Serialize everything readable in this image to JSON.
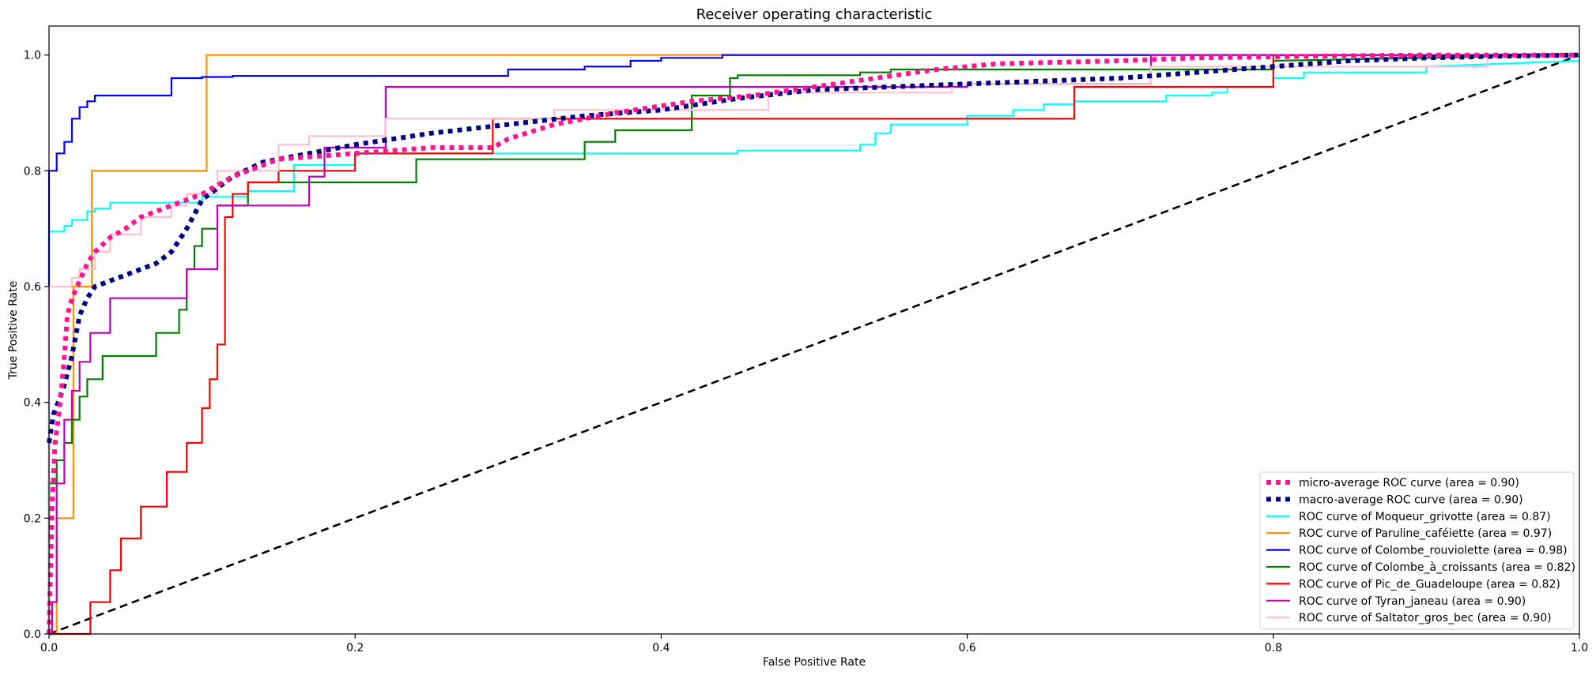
{
  "chart_data": {
    "type": "line",
    "title": "Receiver operating characteristic",
    "xlabel": "False Positive Rate",
    "ylabel": "True Positive Rate",
    "xlim": [
      0.0,
      1.0
    ],
    "ylim": [
      0.0,
      1.05
    ],
    "xticks": [
      "0.0",
      "0.2",
      "0.4",
      "0.6",
      "0.8",
      "1.0"
    ],
    "yticks": [
      "0.0",
      "0.2",
      "0.4",
      "0.6",
      "0.8",
      "1.0"
    ],
    "grid": false,
    "legend_position": "lower-right",
    "series": [
      {
        "name": "micro-average ROC curve (area = 0.90)",
        "color": "#ff1493",
        "style": "dotted",
        "width": 6,
        "x": [
          0.0,
          0.002,
          0.004,
          0.006,
          0.008,
          0.01,
          0.012,
          0.015,
          0.02,
          0.025,
          0.03,
          0.04,
          0.05,
          0.06,
          0.08,
          0.1,
          0.12,
          0.15,
          0.2,
          0.25,
          0.29,
          0.3,
          0.33,
          0.37,
          0.42,
          0.46,
          0.5,
          0.54,
          0.58,
          0.62,
          0.7,
          0.75,
          0.8,
          0.86,
          0.9,
          0.95,
          1.0
        ],
        "y": [
          0.0,
          0.22,
          0.33,
          0.37,
          0.42,
          0.48,
          0.55,
          0.58,
          0.61,
          0.64,
          0.66,
          0.685,
          0.7,
          0.72,
          0.74,
          0.76,
          0.79,
          0.82,
          0.83,
          0.84,
          0.84,
          0.855,
          0.88,
          0.9,
          0.92,
          0.93,
          0.945,
          0.96,
          0.975,
          0.985,
          0.99,
          0.995,
          0.997,
          0.999,
          1.0,
          1.0,
          1.0
        ]
      },
      {
        "name": "macro-average ROC curve (area = 0.90)",
        "color": "#000080",
        "style": "dotted",
        "width": 6,
        "x": [
          0.0,
          0.003,
          0.006,
          0.01,
          0.015,
          0.02,
          0.025,
          0.03,
          0.04,
          0.05,
          0.06,
          0.07,
          0.08,
          0.09,
          0.1,
          0.11,
          0.12,
          0.14,
          0.16,
          0.2,
          0.25,
          0.3,
          0.35,
          0.4,
          0.45,
          0.5,
          0.6,
          0.7,
          0.8,
          0.85,
          0.9,
          0.95,
          1.0
        ],
        "y": [
          0.33,
          0.38,
          0.4,
          0.43,
          0.48,
          0.55,
          0.58,
          0.6,
          0.61,
          0.62,
          0.63,
          0.64,
          0.66,
          0.7,
          0.75,
          0.77,
          0.79,
          0.815,
          0.825,
          0.845,
          0.865,
          0.88,
          0.895,
          0.905,
          0.925,
          0.94,
          0.95,
          0.96,
          0.98,
          0.99,
          0.995,
          0.998,
          1.0
        ]
      },
      {
        "name": "ROC curve of Moqueur_grivotte (area = 0.87)",
        "color": "#00ffff",
        "style": "solid",
        "width": 2.2,
        "x": [
          0.0,
          0.0,
          0.01,
          0.01,
          0.015,
          0.015,
          0.025,
          0.025,
          0.03,
          0.03,
          0.04,
          0.04,
          0.1,
          0.1,
          0.13,
          0.13,
          0.16,
          0.16,
          0.2,
          0.2,
          0.45,
          0.45,
          0.53,
          0.53,
          0.54,
          0.54,
          0.55,
          0.55,
          0.6,
          0.6,
          0.63,
          0.63,
          0.65,
          0.65,
          0.67,
          0.67,
          0.73,
          0.73,
          0.76,
          0.76,
          0.77,
          0.77,
          0.8,
          0.8,
          0.82,
          0.82,
          0.9,
          0.9,
          1.0
        ],
        "y": [
          0.0,
          0.695,
          0.695,
          0.705,
          0.705,
          0.715,
          0.715,
          0.73,
          0.73,
          0.735,
          0.735,
          0.745,
          0.745,
          0.755,
          0.755,
          0.765,
          0.765,
          0.81,
          0.81,
          0.83,
          0.83,
          0.835,
          0.835,
          0.845,
          0.845,
          0.865,
          0.865,
          0.88,
          0.88,
          0.895,
          0.895,
          0.905,
          0.905,
          0.915,
          0.915,
          0.92,
          0.92,
          0.93,
          0.93,
          0.935,
          0.935,
          0.945,
          0.945,
          0.96,
          0.96,
          0.97,
          0.97,
          0.98,
          0.99
        ]
      },
      {
        "name": "ROC curve of Paruline_caféiette (area = 0.97)",
        "color": "#ff8c00",
        "style": "solid",
        "width": 2.2,
        "x": [
          0.0,
          0.005,
          0.005,
          0.016,
          0.016,
          0.028,
          0.028,
          0.103,
          0.103,
          0.44,
          1.0
        ],
        "y": [
          0.0,
          0.0,
          0.2,
          0.2,
          0.6,
          0.6,
          0.8,
          0.8,
          1.0,
          1.0,
          1.0
        ]
      },
      {
        "name": "ROC curve of Colombe_rouviolette (area = 0.98)",
        "color": "#0000ff",
        "style": "solid",
        "width": 2.2,
        "x": [
          0.0,
          0.0,
          0.005,
          0.005,
          0.01,
          0.01,
          0.015,
          0.015,
          0.02,
          0.02,
          0.025,
          0.025,
          0.03,
          0.03,
          0.08,
          0.08,
          0.1,
          0.1,
          0.12,
          0.12,
          0.3,
          0.3,
          0.35,
          0.35,
          0.38,
          0.38,
          0.4,
          0.4,
          0.44,
          0.44,
          1.0
        ],
        "y": [
          0.0,
          0.8,
          0.8,
          0.83,
          0.83,
          0.85,
          0.85,
          0.89,
          0.89,
          0.91,
          0.91,
          0.92,
          0.92,
          0.93,
          0.93,
          0.96,
          0.96,
          0.962,
          0.962,
          0.964,
          0.964,
          0.975,
          0.975,
          0.98,
          0.98,
          0.99,
          0.99,
          0.995,
          0.995,
          1.0,
          1.0
        ]
      },
      {
        "name": "ROC curve of Colombe_à_croissants (area = 0.82)",
        "color": "#008000",
        "style": "solid",
        "width": 2.2,
        "x": [
          0.0,
          0.0,
          0.005,
          0.005,
          0.01,
          0.01,
          0.015,
          0.015,
          0.02,
          0.02,
          0.025,
          0.025,
          0.035,
          0.035,
          0.07,
          0.07,
          0.085,
          0.085,
          0.09,
          0.09,
          0.095,
          0.095,
          0.1,
          0.1,
          0.11,
          0.11,
          0.13,
          0.13,
          0.24,
          0.24,
          0.35,
          0.35,
          0.37,
          0.37,
          0.42,
          0.42,
          0.44,
          0.44,
          0.445,
          0.445,
          0.45,
          0.45,
          0.53,
          0.53,
          0.55,
          0.55,
          0.8,
          0.8,
          1.0
        ],
        "y": [
          0.0,
          0.26,
          0.26,
          0.3,
          0.3,
          0.33,
          0.33,
          0.37,
          0.37,
          0.41,
          0.41,
          0.44,
          0.44,
          0.48,
          0.48,
          0.52,
          0.52,
          0.56,
          0.56,
          0.63,
          0.63,
          0.67,
          0.67,
          0.7,
          0.7,
          0.74,
          0.74,
          0.78,
          0.78,
          0.82,
          0.82,
          0.85,
          0.85,
          0.87,
          0.87,
          0.93,
          0.93,
          0.93,
          0.93,
          0.96,
          0.96,
          0.965,
          0.965,
          0.97,
          0.97,
          0.975,
          0.975,
          0.99,
          1.0
        ]
      },
      {
        "name": "ROC curve of Pic_de_Guadeloupe (area = 0.82)",
        "color": "#ff0000",
        "style": "solid",
        "width": 2.2,
        "x": [
          0.0,
          0.027,
          0.027,
          0.04,
          0.04,
          0.047,
          0.047,
          0.06,
          0.06,
          0.077,
          0.077,
          0.09,
          0.09,
          0.1,
          0.1,
          0.105,
          0.105,
          0.11,
          0.11,
          0.115,
          0.115,
          0.12,
          0.12,
          0.13,
          0.13,
          0.15,
          0.15,
          0.2,
          0.2,
          0.29,
          0.29,
          0.45,
          0.45,
          0.67,
          0.67,
          0.8,
          0.8,
          1.0
        ],
        "y": [
          0.0,
          0.0,
          0.055,
          0.055,
          0.11,
          0.11,
          0.165,
          0.165,
          0.22,
          0.22,
          0.28,
          0.28,
          0.33,
          0.33,
          0.39,
          0.39,
          0.44,
          0.44,
          0.5,
          0.5,
          0.72,
          0.72,
          0.76,
          0.76,
          0.78,
          0.78,
          0.8,
          0.8,
          0.83,
          0.83,
          0.89,
          0.89,
          0.89,
          0.89,
          0.945,
          0.945,
          1.0,
          1.0
        ]
      },
      {
        "name": "ROC curve of Tyran_janeau (area = 0.90)",
        "color": "#bf00bf",
        "style": "solid",
        "width": 2.2,
        "x": [
          0.0,
          0.002,
          0.002,
          0.005,
          0.005,
          0.01,
          0.01,
          0.015,
          0.015,
          0.02,
          0.02,
          0.027,
          0.027,
          0.04,
          0.04,
          0.09,
          0.09,
          0.11,
          0.11,
          0.12,
          0.12,
          0.17,
          0.17,
          0.18,
          0.18,
          0.22,
          0.22,
          0.6,
          0.6,
          0.72,
          0.72,
          0.8,
          1.0
        ],
        "y": [
          0.0,
          0.0,
          0.055,
          0.055,
          0.26,
          0.26,
          0.37,
          0.37,
          0.42,
          0.42,
          0.47,
          0.47,
          0.52,
          0.52,
          0.58,
          0.58,
          0.63,
          0.63,
          0.74,
          0.74,
          0.74,
          0.74,
          0.79,
          0.79,
          0.84,
          0.84,
          0.945,
          0.945,
          0.95,
          0.95,
          1.0,
          1.0,
          1.0
        ]
      },
      {
        "name": "ROC curve of Saltator_gros_bec (area = 0.90)",
        "color": "#ffc0cb",
        "style": "solid",
        "width": 2.2,
        "x": [
          0.0,
          0.0,
          0.015,
          0.015,
          0.02,
          0.02,
          0.03,
          0.03,
          0.04,
          0.04,
          0.06,
          0.06,
          0.08,
          0.08,
          0.09,
          0.09,
          0.11,
          0.11,
          0.15,
          0.15,
          0.17,
          0.17,
          0.22,
          0.22,
          0.33,
          0.33,
          0.47,
          0.47,
          0.59,
          0.59,
          0.72,
          0.72,
          0.94,
          0.94,
          1.0
        ],
        "y": [
          0.0,
          0.6,
          0.6,
          0.615,
          0.615,
          0.63,
          0.63,
          0.66,
          0.66,
          0.69,
          0.69,
          0.72,
          0.72,
          0.74,
          0.74,
          0.76,
          0.76,
          0.8,
          0.8,
          0.845,
          0.845,
          0.86,
          0.86,
          0.89,
          0.89,
          0.905,
          0.905,
          0.935,
          0.935,
          0.95,
          0.95,
          0.98,
          0.98,
          0.995,
          1.0
        ]
      },
      {
        "name": "",
        "color": "#000000",
        "style": "dashed",
        "width": 2.6,
        "x": [
          0.0,
          1.0
        ],
        "y": [
          0.0,
          1.0
        ]
      }
    ]
  }
}
